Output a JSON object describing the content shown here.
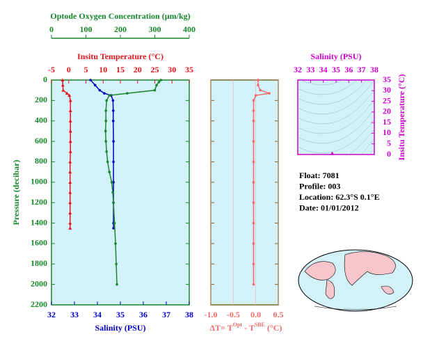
{
  "chart_data": [
    {
      "type": "profile",
      "ylabel": "Pressure (decibar)",
      "ylim": [
        0,
        2200
      ],
      "yticks": [
        0,
        200,
        400,
        600,
        800,
        1000,
        1200,
        1400,
        1600,
        1800,
        2000,
        2200
      ],
      "ycolor": "#17862b",
      "background": "#d2f1f8",
      "series": [
        {
          "label": "Optode Oxygen Concentration (µm/kg)",
          "position": "top-outer",
          "color": "#17862b",
          "marker": "circle",
          "xlim": [
            0,
            400
          ],
          "xticks": [
            0,
            100,
            200,
            300,
            400
          ],
          "pressure": [
            0,
            20,
            50,
            100,
            130,
            150,
            200,
            300,
            400,
            500,
            600,
            700,
            800,
            900,
            1000,
            1100,
            1200,
            1400,
            1600,
            1800,
            2000
          ],
          "values": [
            318,
            312,
            305,
            300,
            220,
            168,
            160,
            158,
            158,
            157,
            158,
            160,
            163,
            168,
            175,
            178,
            180,
            183,
            186,
            188,
            190
          ]
        },
        {
          "label": "Insitu Temperature (°C)",
          "position": "top",
          "color": "#e8141c",
          "marker": "triangle",
          "xlim": [
            -5,
            35
          ],
          "xticks": [
            -5,
            0,
            5,
            10,
            15,
            20,
            25,
            30,
            35
          ],
          "pressure": [
            0,
            50,
            100,
            130,
            150,
            200,
            300,
            400,
            500,
            600,
            700,
            800,
            900,
            1000,
            1100,
            1200,
            1300,
            1400,
            1450
          ],
          "values": [
            -1.8,
            -1.7,
            -1.6,
            -0.5,
            0.2,
            0.5,
            0.5,
            0.5,
            0.5,
            0.5,
            0.5,
            0.4,
            0.4,
            0.4,
            0.4,
            0.4,
            0.4,
            0.4,
            0.4
          ]
        },
        {
          "label": "Salinity (PSU)",
          "position": "bottom",
          "color": "#0000c0",
          "marker": "circle",
          "xlim": [
            32,
            38
          ],
          "xticks": [
            32,
            33,
            34,
            35,
            36,
            37,
            38
          ],
          "pressure": [
            0,
            50,
            100,
            130,
            150,
            200,
            300,
            400,
            600,
            800,
            1000,
            1200,
            1400,
            1450
          ],
          "values": [
            33.7,
            33.9,
            34.1,
            34.3,
            34.6,
            34.68,
            34.69,
            34.69,
            34.7,
            34.7,
            34.7,
            34.7,
            34.7,
            34.7
          ]
        }
      ]
    },
    {
      "type": "delta",
      "xlabel": [
        "ΔT= T",
        "Opt",
        " - T",
        "SBE",
        " (°C)"
      ],
      "color": "#f06a6a",
      "background": "#d2f1f8",
      "xlim": [
        -1.0,
        0.5
      ],
      "xticks": [
        {
          "value": -1.0,
          "label": "-1.0"
        },
        -0.5,
        {
          "value": 0,
          "label": "0.0"
        },
        0.5
      ],
      "pressure": [
        0,
        50,
        100,
        130,
        150,
        200,
        300,
        400,
        600,
        800,
        1000,
        1200,
        1400,
        1600,
        1800,
        2000
      ],
      "values": [
        0.05,
        0.05,
        0.1,
        0.3,
        0.0,
        -0.05,
        -0.05,
        -0.05,
        -0.05,
        -0.05,
        -0.05,
        -0.05,
        -0.05,
        -0.05,
        -0.05,
        -0.05
      ]
    },
    {
      "type": "scatter",
      "xlabel": "Salinity (PSU)",
      "ylabel": "Insitu Temperature (°C)",
      "color": "#cc00cc",
      "background": "#d2f1f8",
      "xlim": [
        32,
        38
      ],
      "xticks": [
        32,
        33,
        34,
        35,
        36,
        37,
        38
      ],
      "ylim": [
        0,
        35
      ],
      "yticks": [
        0,
        5,
        10,
        15,
        20,
        25,
        30,
        35
      ],
      "x": [
        34.7
      ],
      "values": [
        0.4
      ]
    }
  ],
  "info": [
    "Float:  7081",
    "Profile:  003",
    "Location:  62.3°S   0.1°E",
    "Date:  01/01/2012"
  ]
}
